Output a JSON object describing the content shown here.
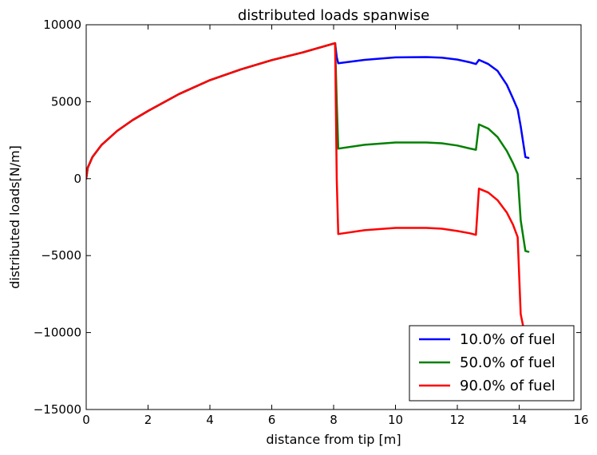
{
  "chart_data": {
    "type": "line",
    "title": "distributed loads spanwise",
    "xlabel": "distance from tip [m]",
    "ylabel": "distributed loads[N/m]",
    "xlim": [
      0,
      16
    ],
    "ylim": [
      -15000,
      10000
    ],
    "x_ticks": [
      0,
      2,
      4,
      6,
      8,
      10,
      12,
      14,
      16
    ],
    "y_ticks": [
      -15000,
      -10000,
      -5000,
      0,
      5000,
      10000
    ],
    "x_tick_labels": [
      "0",
      "2",
      "4",
      "6",
      "8",
      "10",
      "12",
      "14",
      "16"
    ],
    "y_tick_labels": [
      "−15000",
      "−10000",
      "−5000",
      "0",
      "5000",
      "10000"
    ],
    "grid": false,
    "legend_position": "lower-right",
    "series": [
      {
        "name": "10.0% of fuel",
        "color": "#0000ff",
        "x": [
          0,
          0.05,
          0.2,
          0.5,
          1,
          1.5,
          2,
          3,
          4,
          5,
          6,
          7,
          8.05,
          8.1,
          8.15,
          9,
          10,
          11,
          11.5,
          12,
          12.4,
          12.6,
          12.7,
          13,
          13.3,
          13.6,
          13.8,
          13.95,
          14.05,
          14.2,
          14.3
        ],
        "y": [
          0,
          700,
          1400,
          2200,
          3100,
          3800,
          4400,
          5500,
          6400,
          7100,
          7700,
          8200,
          8800,
          7900,
          7500,
          7720,
          7880,
          7900,
          7860,
          7740,
          7560,
          7450,
          7720,
          7450,
          7000,
          6100,
          5200,
          4500,
          3400,
          1400,
          1350
        ]
      },
      {
        "name": "50.0% of fuel",
        "color": "#008000",
        "x": [
          0,
          0.05,
          0.2,
          0.5,
          1,
          1.5,
          2,
          3,
          4,
          5,
          6,
          7,
          8.05,
          8.1,
          8.15,
          9,
          10,
          11,
          11.5,
          12,
          12.4,
          12.6,
          12.7,
          13,
          13.3,
          13.6,
          13.8,
          13.95,
          14.05,
          14.2,
          14.3
        ],
        "y": [
          0,
          700,
          1400,
          2200,
          3100,
          3800,
          4400,
          5500,
          6400,
          7100,
          7700,
          8200,
          8800,
          5000,
          1950,
          2200,
          2350,
          2350,
          2300,
          2150,
          1960,
          1880,
          3520,
          3250,
          2700,
          1800,
          1000,
          300,
          -2700,
          -4700,
          -4750
        ]
      },
      {
        "name": "90.0% of fuel",
        "color": "#ff0000",
        "x": [
          0,
          0.05,
          0.2,
          0.5,
          1,
          1.5,
          2,
          3,
          4,
          5,
          6,
          7,
          8.05,
          8.1,
          8.15,
          9,
          10,
          11,
          11.5,
          12,
          12.4,
          12.6,
          12.7,
          13,
          13.3,
          13.6,
          13.8,
          13.95,
          14.05,
          14.15
        ],
        "y": [
          0,
          700,
          1400,
          2200,
          3100,
          3800,
          4400,
          5500,
          6400,
          7100,
          7700,
          8200,
          8800,
          0,
          -3600,
          -3350,
          -3200,
          -3200,
          -3250,
          -3400,
          -3550,
          -3650,
          -650,
          -900,
          -1400,
          -2200,
          -3000,
          -3800,
          -8800,
          -9800
        ]
      }
    ]
  }
}
